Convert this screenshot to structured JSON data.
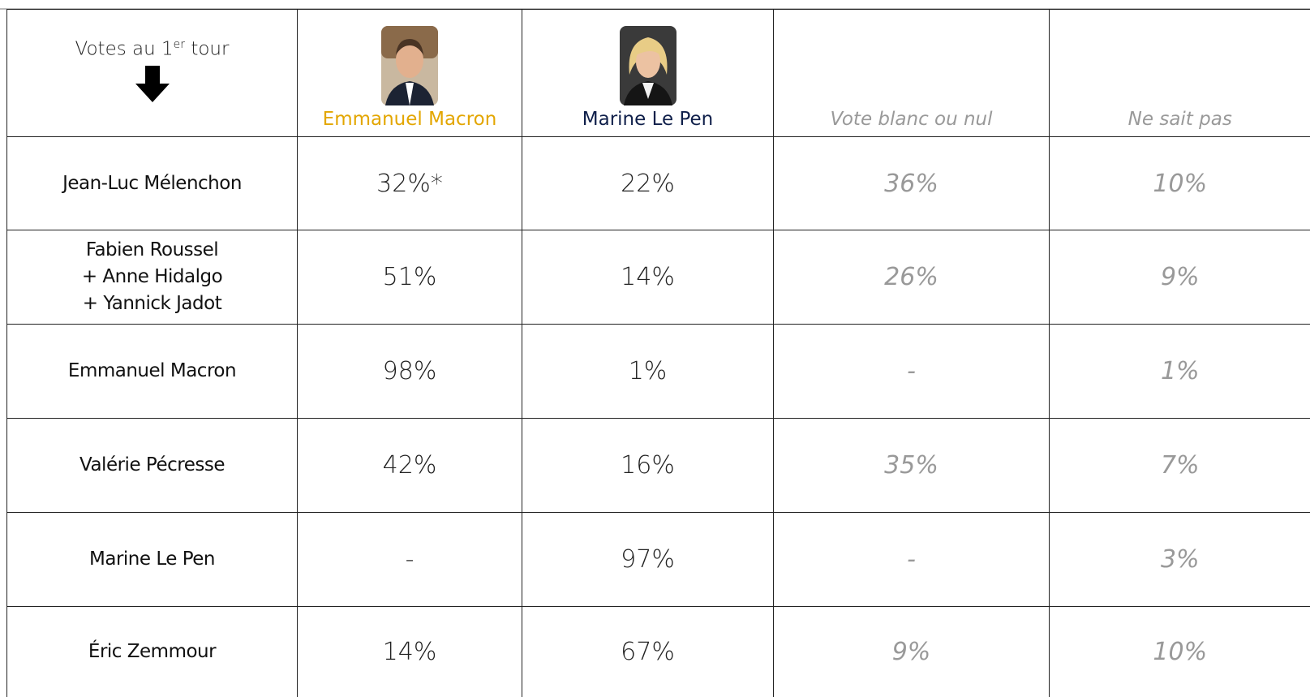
{
  "header": {
    "stub": {
      "before": "Votes au 1",
      "sup": "er",
      "after": " tour"
    },
    "columns": [
      "Emmanuel Macron",
      "Marine Le Pen",
      "Vote blanc ou nul",
      "Ne sait pas"
    ]
  },
  "table": {
    "rows": [
      {
        "label": [
          "Jean-Luc Mélenchon"
        ],
        "cells": [
          "32%*",
          "22%",
          "36%",
          "10%"
        ]
      },
      {
        "label": [
          "Fabien Roussel",
          "+ Anne Hidalgo",
          "+ Yannick Jadot"
        ],
        "cells": [
          "51%",
          "14%",
          "26%",
          "9%"
        ]
      },
      {
        "label": [
          "Emmanuel Macron"
        ],
        "cells": [
          "98%",
          "1%",
          "-",
          "1%"
        ]
      },
      {
        "label": [
          "Valérie Pécresse"
        ],
        "cells": [
          "42%",
          "16%",
          "35%",
          "7%"
        ]
      },
      {
        "label": [
          "Marine Le Pen"
        ],
        "cells": [
          "-",
          "97%",
          "-",
          "3%"
        ]
      },
      {
        "label": [
          "Éric Zemmour"
        ],
        "cells": [
          "14%",
          "67%",
          "9%",
          "10%"
        ]
      }
    ]
  }
}
